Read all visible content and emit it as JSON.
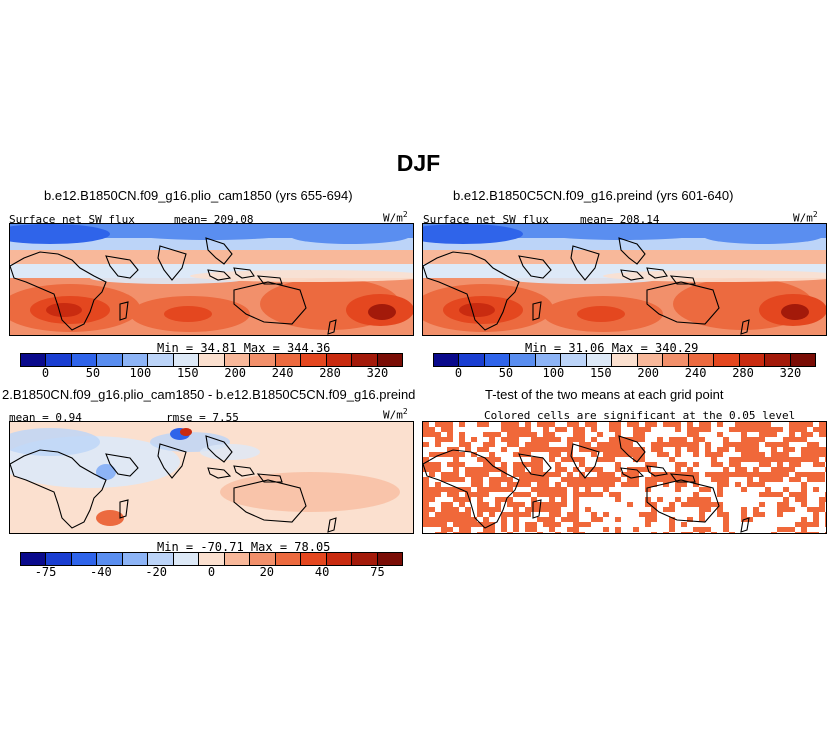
{
  "figure": {
    "title": "DJF",
    "units_label": "W/m",
    "units_exp": "2"
  },
  "chart_data": [
    {
      "type": "heatmap",
      "id": "panel_a",
      "title": "b.e12.B1850CN.f09_g16.plio_cam1850 (yrs 655-694)",
      "variable": "Surface net SW flux",
      "mean_label": "mean= 209.08",
      "minmax_label": "Min =  34.81 Max = 344.36",
      "levels": [
        0,
        50,
        100,
        150,
        200,
        240,
        280,
        320
      ],
      "colorbar_colors": [
        "#0a0a8c",
        "#1a3ed1",
        "#2f64ea",
        "#5a8ef0",
        "#8db4f6",
        "#bcd4f8",
        "#dde9f7",
        "#fbe0cf",
        "#f8b89a",
        "#f2906b",
        "#ec6a3f",
        "#e4471f",
        "#c92b10",
        "#a31a0a",
        "#7a0d06"
      ]
    },
    {
      "type": "heatmap",
      "id": "panel_b",
      "title": "b.e12.B1850C5CN.f09_g16.preind (yrs 601-640)",
      "variable": "Surface net SW flux",
      "mean_label": "mean= 208.14",
      "minmax_label": "Min =  31.06 Max = 340.29",
      "levels": [
        0,
        50,
        100,
        150,
        200,
        240,
        280,
        320
      ],
      "colorbar_colors": [
        "#0a0a8c",
        "#1a3ed1",
        "#2f64ea",
        "#5a8ef0",
        "#8db4f6",
        "#bcd4f8",
        "#dde9f7",
        "#fbe0cf",
        "#f8b89a",
        "#f2906b",
        "#ec6a3f",
        "#e4471f",
        "#c92b10",
        "#a31a0a",
        "#7a0d06"
      ]
    },
    {
      "type": "heatmap",
      "id": "panel_c",
      "title": "2.B1850CN.f09_g16.plio_cam1850 - b.e12.B1850C5CN.f09_g16.preind",
      "mean_label": "mean =  0.94",
      "rmse_label": "rmse =  7.55",
      "minmax_label": "Min = -70.71 Max =  78.05",
      "levels": [
        -75,
        -40,
        -20,
        0,
        20,
        40,
        75
      ],
      "colorbar_colors": [
        "#0a0a8c",
        "#1a3ed1",
        "#2f64ea",
        "#5a8ef0",
        "#8db4f6",
        "#bcd4f8",
        "#dde9f7",
        "#fbe0cf",
        "#f8b89a",
        "#f2906b",
        "#ec6a3f",
        "#e4471f",
        "#c92b10",
        "#a31a0a",
        "#7a0d06"
      ]
    },
    {
      "type": "heatmap",
      "id": "panel_d",
      "title": "T-test of the two means at each grid point",
      "subtitle": "Colored cells are significant at the 0.05 level",
      "significant_color": "#f0683a"
    }
  ]
}
